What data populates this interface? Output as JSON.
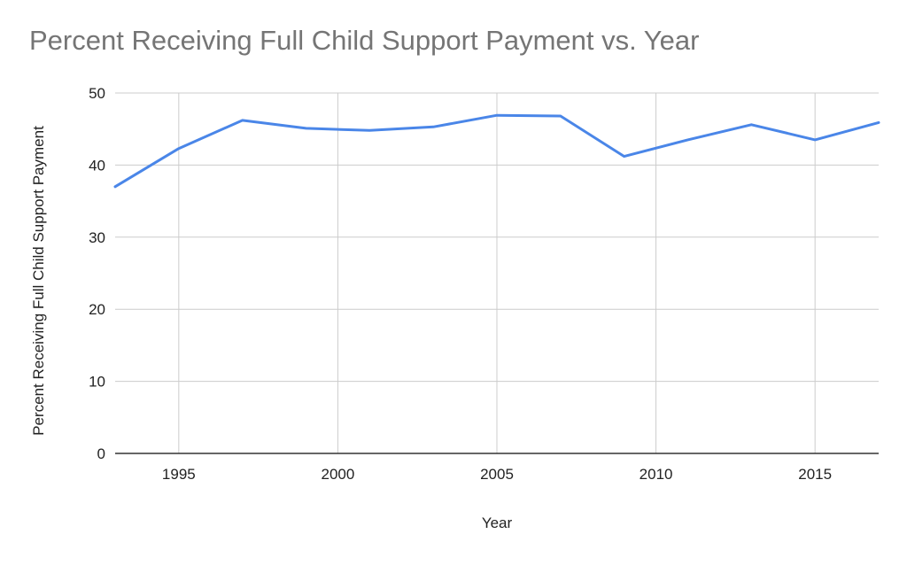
{
  "chart_data": {
    "type": "line",
    "title": "Percent Receiving Full Child Support Payment vs. Year",
    "xlabel": "Year",
    "ylabel": "Percent Receiving Full Child Support Payment",
    "xlim": [
      1993,
      2017
    ],
    "ylim": [
      0,
      50
    ],
    "x_ticks": [
      1995,
      2000,
      2005,
      2010,
      2015
    ],
    "y_ticks": [
      0,
      10,
      20,
      30,
      40,
      50
    ],
    "grid": true,
    "legend": "none",
    "series": [
      {
        "color": "#4a86e8",
        "x": [
          1993,
          1995,
          1997,
          1999,
          2001,
          2003,
          2005,
          2007,
          2009,
          2011,
          2013,
          2015,
          2017
        ],
        "y": [
          37.0,
          42.3,
          46.2,
          45.1,
          44.8,
          45.3,
          46.9,
          46.8,
          41.2,
          43.5,
          45.6,
          43.5,
          45.9
        ]
      }
    ]
  }
}
